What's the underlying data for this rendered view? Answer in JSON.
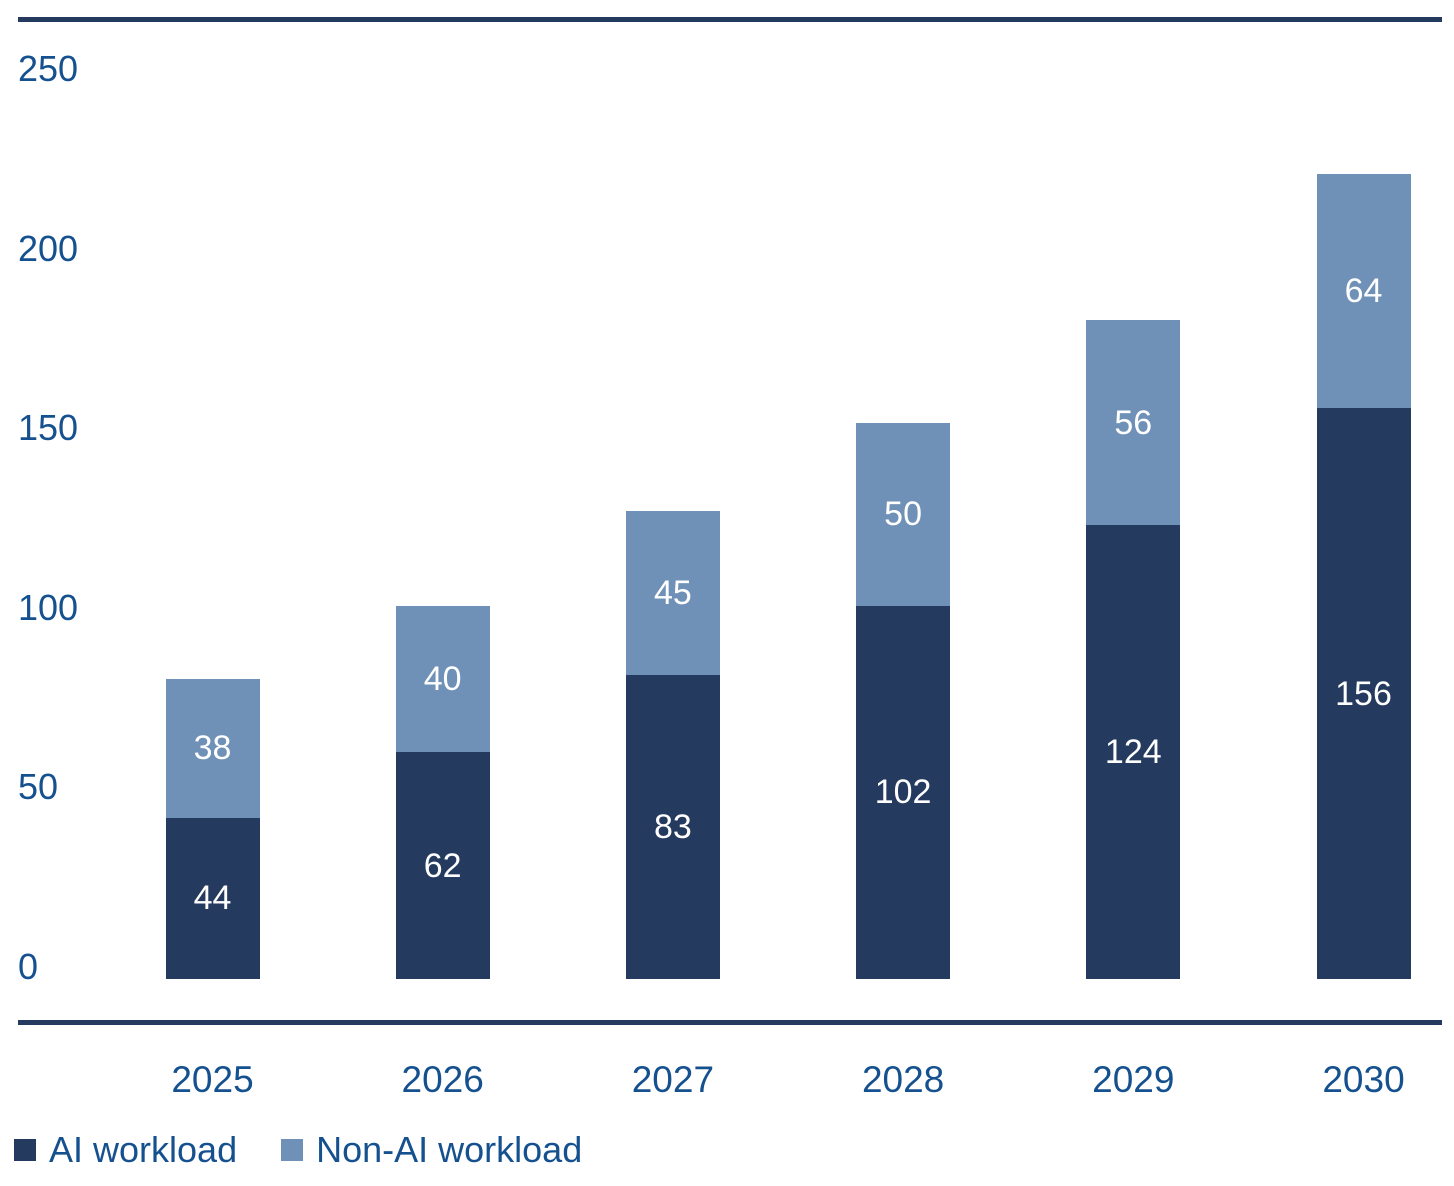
{
  "chart_data": {
    "type": "bar",
    "stacked": true,
    "title": "",
    "xlabel": "",
    "ylabel": "",
    "categories": [
      "2025",
      "2026",
      "2027",
      "2028",
      "2029",
      "2030"
    ],
    "series": [
      {
        "name": "AI workload",
        "color": "#243A5E",
        "values": [
          44,
          62,
          83,
          102,
          124,
          156
        ]
      },
      {
        "name": "Non-AI workload",
        "color": "#7091B7",
        "values": [
          38,
          40,
          45,
          50,
          56,
          64
        ]
      }
    ],
    "yticks": [
      0,
      50,
      100,
      150,
      200,
      250
    ],
    "ylim": [
      0,
      250
    ],
    "grid": false,
    "legend_position": "bottom-left",
    "value_labels": "inside-center"
  },
  "colors": {
    "axis_text": "#15508F",
    "bar_value_text": "#FFFFFF",
    "rule": "#243A5E",
    "background": "#FFFFFF"
  }
}
